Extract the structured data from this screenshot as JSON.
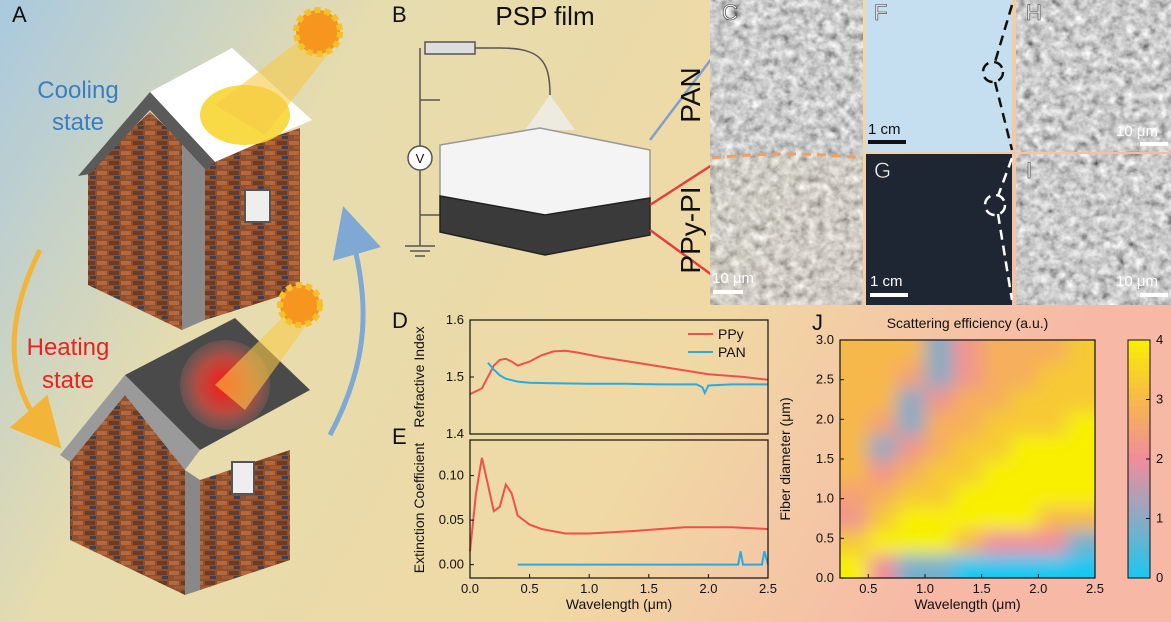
{
  "figure": {
    "panel_labels": [
      "A",
      "B",
      "C",
      "D",
      "E",
      "F",
      "G",
      "H",
      "I",
      "J"
    ],
    "cooling": [
      "Cooling",
      "state"
    ],
    "heating": [
      "Heating",
      "state"
    ],
    "psp_film": "PSP film",
    "voltage": "V",
    "layer_top": "PAN",
    "layer_bottom": "PPy-PI",
    "scale_bars": {
      "C": "10 μm",
      "F": "1 cm",
      "G": "1 cm",
      "H": "10 μm",
      "I": "10 μm"
    }
  },
  "chart_data": [
    {
      "type": "line",
      "ylabel": "Refractive Index",
      "xlim": [
        0,
        2.5
      ],
      "ylim": [
        1.4,
        1.6
      ],
      "yticks": [
        1.4,
        1.5,
        1.6
      ],
      "legend": "upper right",
      "series": [
        {
          "name": "PPy",
          "color": "#f0504a",
          "x": [
            0,
            0.1,
            0.15,
            0.2,
            0.25,
            0.3,
            0.35,
            0.4,
            0.5,
            0.6,
            0.7,
            0.8,
            0.9,
            1.1,
            1.4,
            1.7,
            2.0,
            2.3,
            2.5
          ],
          "values": [
            1.47,
            1.48,
            1.5,
            1.52,
            1.53,
            1.532,
            1.527,
            1.52,
            1.527,
            1.538,
            1.545,
            1.546,
            1.543,
            1.535,
            1.525,
            1.515,
            1.505,
            1.5,
            1.495
          ]
        },
        {
          "name": "PAN",
          "color": "#29abe2",
          "x": [
            0.15,
            0.2,
            0.25,
            0.3,
            0.4,
            0.5,
            0.7,
            1.0,
            1.3,
            1.6,
            1.9,
            1.95,
            1.97,
            2.0,
            2.2,
            2.5
          ],
          "values": [
            1.525,
            1.513,
            1.503,
            1.497,
            1.492,
            1.49,
            1.489,
            1.488,
            1.488,
            1.487,
            1.487,
            1.482,
            1.472,
            1.485,
            1.487,
            1.487
          ]
        }
      ]
    },
    {
      "type": "line",
      "ylabel": "Extinction Coefficient",
      "xlabel": "Wavelength (μm)",
      "xlim": [
        0,
        2.5
      ],
      "ylim": [
        -0.015,
        0.14
      ],
      "yticks": [
        {
          "value": 0,
          "label": "0.00"
        },
        0.05,
        {
          "value": 0.1,
          "label": "0.10"
        }
      ],
      "xticks": [
        {
          "value": 0,
          "label": "0.0"
        },
        0.5,
        {
          "value": 1,
          "label": "1.0"
        },
        1.5,
        {
          "value": 2,
          "label": "2.0"
        },
        2.5
      ],
      "series": [
        {
          "name": "PPy",
          "color": "#f0504a",
          "x": [
            0,
            0.05,
            0.1,
            0.15,
            0.2,
            0.25,
            0.3,
            0.35,
            0.4,
            0.5,
            0.6,
            0.8,
            1.0,
            1.4,
            1.8,
            2.2,
            2.5
          ],
          "values": [
            0.015,
            0.08,
            0.12,
            0.09,
            0.06,
            0.065,
            0.09,
            0.08,
            0.055,
            0.045,
            0.04,
            0.035,
            0.035,
            0.038,
            0.042,
            0.042,
            0.04
          ]
        },
        {
          "name": "PAN",
          "color": "#29abe2",
          "x": [
            0.4,
            2.25,
            2.27,
            2.29,
            2.45,
            2.47,
            2.5
          ],
          "values": [
            0,
            0,
            0.015,
            0,
            0,
            0.015,
            0
          ]
        }
      ]
    },
    {
      "type": "heatmap",
      "title": "Scattering efficiency (a.u.)",
      "xlabel": "Wavelength (μm)",
      "ylabel": "Fiber diameter (μm)",
      "xlim": [
        0.25,
        2.5
      ],
      "ylim": [
        0,
        3
      ],
      "clim": [
        0,
        4
      ],
      "xticks": [
        0.5,
        {
          "value": 1,
          "label": "1.0"
        },
        1.5,
        {
          "value": 2,
          "label": "2.0"
        },
        2.5
      ],
      "yticks": [
        {
          "value": 0,
          "label": "0.0"
        },
        0.5,
        {
          "value": 1,
          "label": "1.0"
        },
        1.5,
        {
          "value": 2,
          "label": "2.0"
        },
        2.5,
        {
          "value": 3,
          "label": "3.0"
        }
      ],
      "cticks": [
        0,
        1,
        2,
        3,
        4
      ],
      "colormap": [
        "#18c8f0",
        "#8aaac4",
        "#f08c9c",
        "#f7b84c",
        "#f8f000"
      ],
      "x": [
        0.375,
        0.625,
        0.875,
        1.125,
        1.375,
        1.625,
        1.875,
        2.125,
        2.375
      ],
      "y": [
        0.15,
        0.45,
        0.75,
        1.05,
        1.35,
        1.65,
        1.95,
        2.25,
        2.55,
        2.85
      ],
      "z": [
        [
          4,
          2,
          0.8,
          0.8,
          0,
          0,
          0,
          0,
          0
        ],
        [
          3.3,
          4,
          4,
          4,
          3,
          2,
          2,
          2,
          0.8
        ],
        [
          2.2,
          3.3,
          4,
          4,
          4,
          4,
          4,
          3,
          3
        ],
        [
          2.5,
          2.8,
          3.3,
          3.3,
          4,
          4,
          4,
          4,
          4
        ],
        [
          3,
          2.2,
          2.8,
          3.3,
          3.3,
          4,
          4,
          4,
          4
        ],
        [
          3,
          1,
          2.2,
          2.8,
          3.3,
          3.3,
          4,
          4,
          4
        ],
        [
          3,
          2.5,
          1,
          2.8,
          2.8,
          3.3,
          3.3,
          3.3,
          4
        ],
        [
          3,
          3,
          1,
          2.2,
          2.8,
          2.8,
          3.3,
          3.3,
          3.3
        ],
        [
          3,
          3,
          2.5,
          1,
          2.2,
          2.8,
          2.8,
          3.3,
          3.3
        ],
        [
          3,
          3,
          3,
          1,
          2.2,
          2.8,
          2.8,
          2.8,
          3.3
        ]
      ]
    }
  ]
}
